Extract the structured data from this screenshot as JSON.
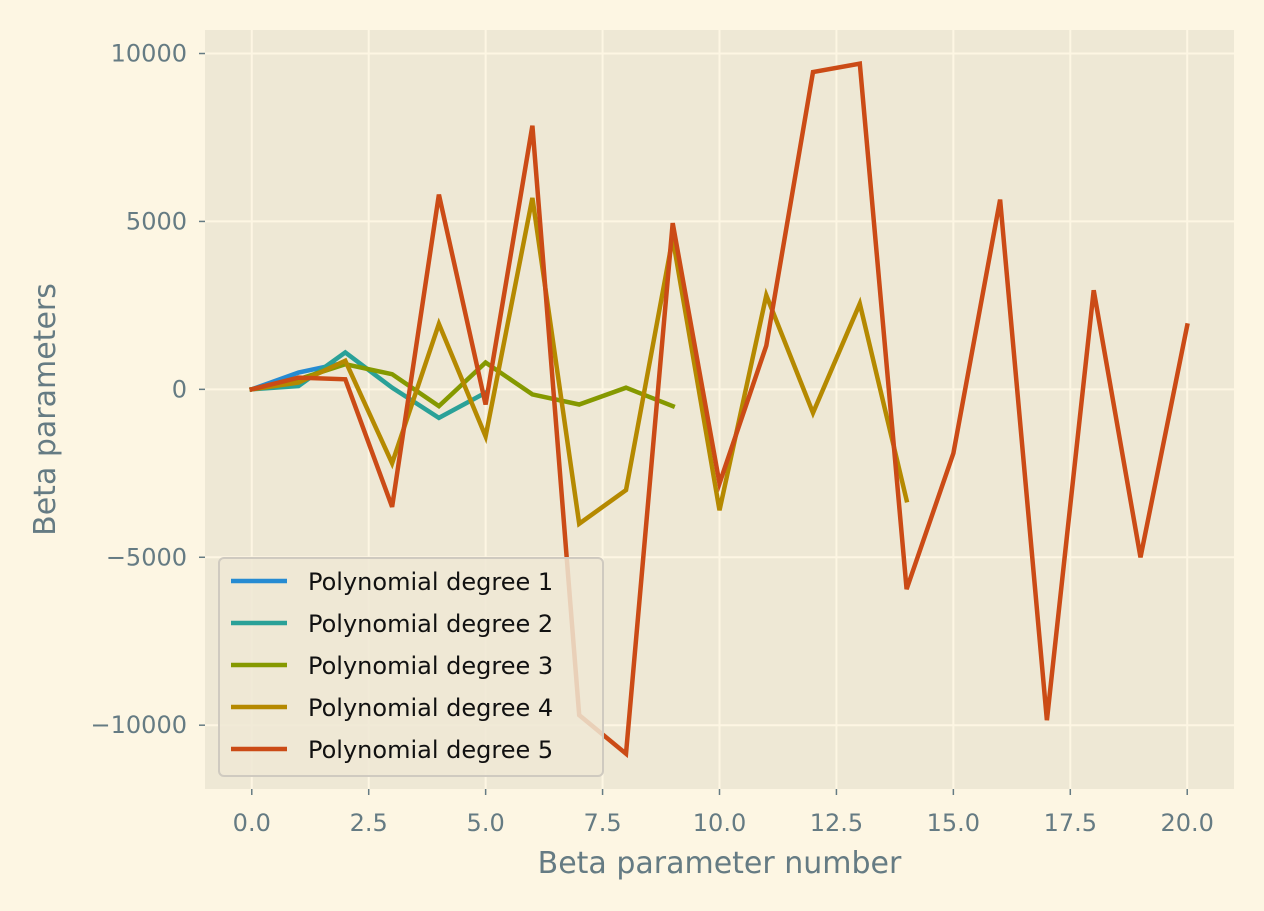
{
  "chart_data": {
    "type": "line",
    "title": "",
    "xlabel": "Beta parameter number",
    "ylabel": "Beta parameters",
    "xlim": [
      -1,
      21
    ],
    "ylim": [
      -11900,
      10700
    ],
    "xticks": [
      0,
      2.5,
      5,
      7.5,
      10,
      12.5,
      15,
      17.5,
      20
    ],
    "xtick_labels": [
      "0.0",
      "2.5",
      "5.0",
      "7.5",
      "10.0",
      "12.5",
      "15.0",
      "17.5",
      "20.0"
    ],
    "yticks": [
      10000,
      5000,
      0,
      -5000,
      -10000
    ],
    "ytick_labels": [
      "10000",
      "5000",
      "0",
      "−5000",
      "−10000"
    ],
    "grid": true,
    "legend_position": "lower-left",
    "colors": {
      "background": "#fdf6e3",
      "plot_area": "#eee8d5",
      "text": "#657b83"
    },
    "series": [
      {
        "name": "Polynomial degree 1",
        "color": "#268bd2",
        "x": [
          0,
          1,
          2
        ],
        "values": [
          0,
          500,
          800
        ]
      },
      {
        "name": "Polynomial degree 2",
        "color": "#2aa198",
        "x": [
          0,
          1,
          2,
          3,
          4,
          5
        ],
        "values": [
          0,
          100,
          1100,
          50,
          -850,
          -100
        ]
      },
      {
        "name": "Polynomial degree 3",
        "color": "#859900",
        "x": [
          0,
          1,
          2,
          3,
          4,
          5,
          6,
          7,
          8,
          9
        ],
        "values": [
          0,
          300,
          750,
          450,
          -500,
          800,
          -150,
          -450,
          50,
          -500
        ]
      },
      {
        "name": "Polynomial degree 4",
        "color": "#b58900",
        "x": [
          0,
          1,
          2,
          3,
          4,
          5,
          6,
          7,
          8,
          9,
          10,
          11,
          12,
          13,
          14
        ],
        "values": [
          0,
          200,
          850,
          -2200,
          1950,
          -1400,
          5700,
          -4000,
          -3000,
          4500,
          -3600,
          2800,
          -700,
          2550,
          -3300
        ]
      },
      {
        "name": "Polynomial degree 5",
        "color": "#cb4b16",
        "x": [
          0,
          1,
          2,
          3,
          4,
          5,
          6,
          7,
          8,
          9,
          10,
          11,
          12,
          13,
          14,
          15,
          16,
          17,
          18,
          19,
          20
        ],
        "values": [
          0,
          350,
          300,
          -3500,
          5800,
          -450,
          7850,
          -9700,
          -10850,
          4950,
          -2800,
          1300,
          9450,
          9700,
          -5950,
          -1900,
          5650,
          -9850,
          2950,
          -5000,
          1900
        ]
      }
    ]
  }
}
